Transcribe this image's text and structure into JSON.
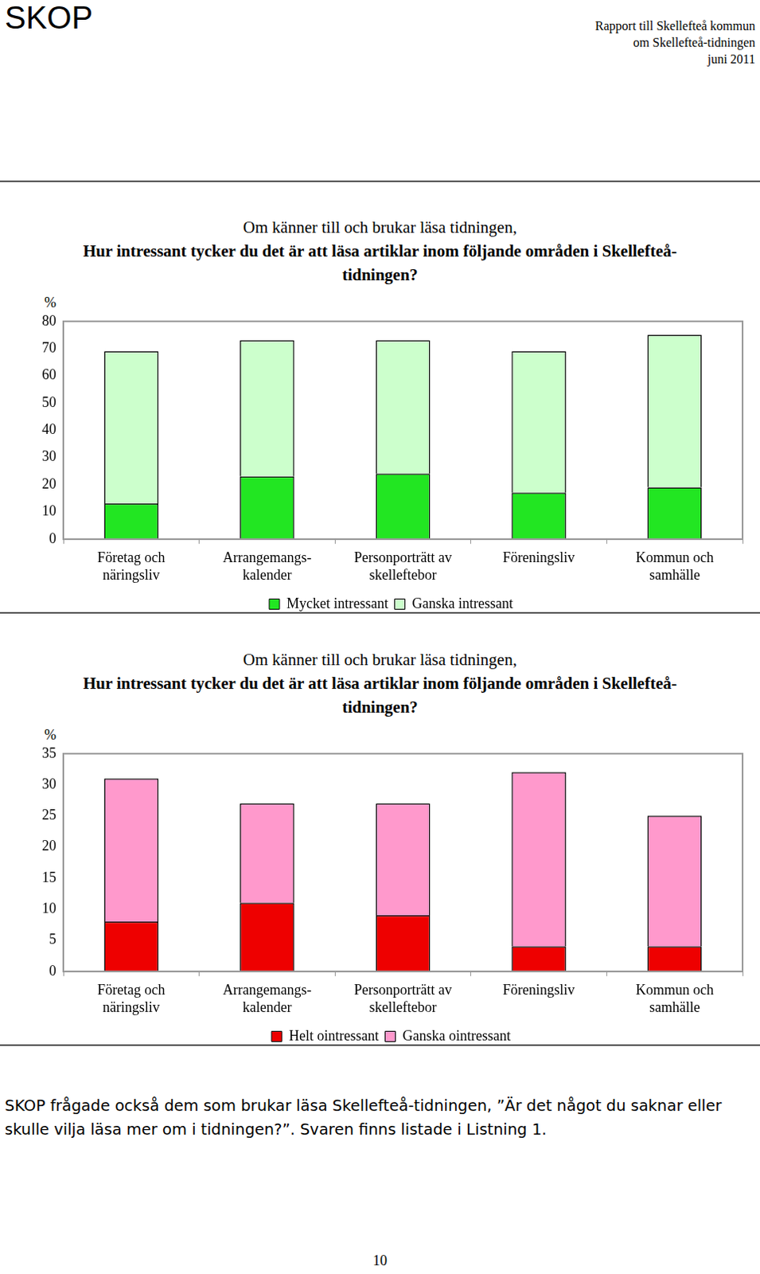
{
  "header": {
    "logo": "SKOP",
    "report": [
      "Rapport till Skellefteå kommun",
      "om Skellefteå-tidningen",
      "juni 2011"
    ]
  },
  "chart_data": [
    {
      "type": "bar",
      "stacked": true,
      "subtitle": "Om känner till och brukar läsa tidningen,",
      "title": "Hur intressant tycker du det är att läsa artiklar inom följande områden i Skellefteå-tidningen?",
      "ylabel": "%",
      "categories": [
        "Företag och näringsliv",
        "Arrangemangs-kalender",
        "Personporträtt av skelleftebor",
        "Föreningsliv",
        "Kommun och samhälle"
      ],
      "series": [
        {
          "name": "Mycket intressant",
          "color": "#22e622",
          "values": [
            13,
            23,
            24,
            17,
            19
          ]
        },
        {
          "name": "Ganska intressant",
          "color": "#ccffcc",
          "values": [
            56,
            50,
            49,
            52,
            56
          ]
        }
      ],
      "ylim": [
        0,
        80
      ],
      "yticks": [
        0,
        10,
        20,
        30,
        40,
        50,
        60,
        70,
        80
      ],
      "grid": false,
      "legend": "bottom"
    },
    {
      "type": "bar",
      "stacked": true,
      "subtitle": "Om känner till och brukar läsa tidningen,",
      "title": "Hur intressant tycker du det är att läsa artiklar inom följande områden i Skellefteå-tidningen?",
      "ylabel": "%",
      "categories": [
        "Företag och näringsliv",
        "Arrangemangs-kalender",
        "Personporträtt av skelleftebor",
        "Föreningsliv",
        "Kommun och samhälle"
      ],
      "series": [
        {
          "name": "Helt ointressant",
          "color": "#ee0000",
          "values": [
            8,
            11,
            9,
            4,
            4
          ]
        },
        {
          "name": "Ganska ointressant",
          "color": "#ff99cc",
          "values": [
            23,
            16,
            18,
            28,
            21
          ]
        }
      ],
      "ylim": [
        0,
        35
      ],
      "yticks": [
        0,
        5,
        10,
        15,
        20,
        25,
        30,
        35
      ],
      "grid": false,
      "legend": "bottom"
    }
  ],
  "footer": {
    "text": "SKOP frågade också dem som brukar läsa Skellefteå-tidningen, ”Är det något du saknar eller skulle vilja läsa mer om i tidningen?”. Svaren finns listade i Listning 1.",
    "page": "10"
  }
}
